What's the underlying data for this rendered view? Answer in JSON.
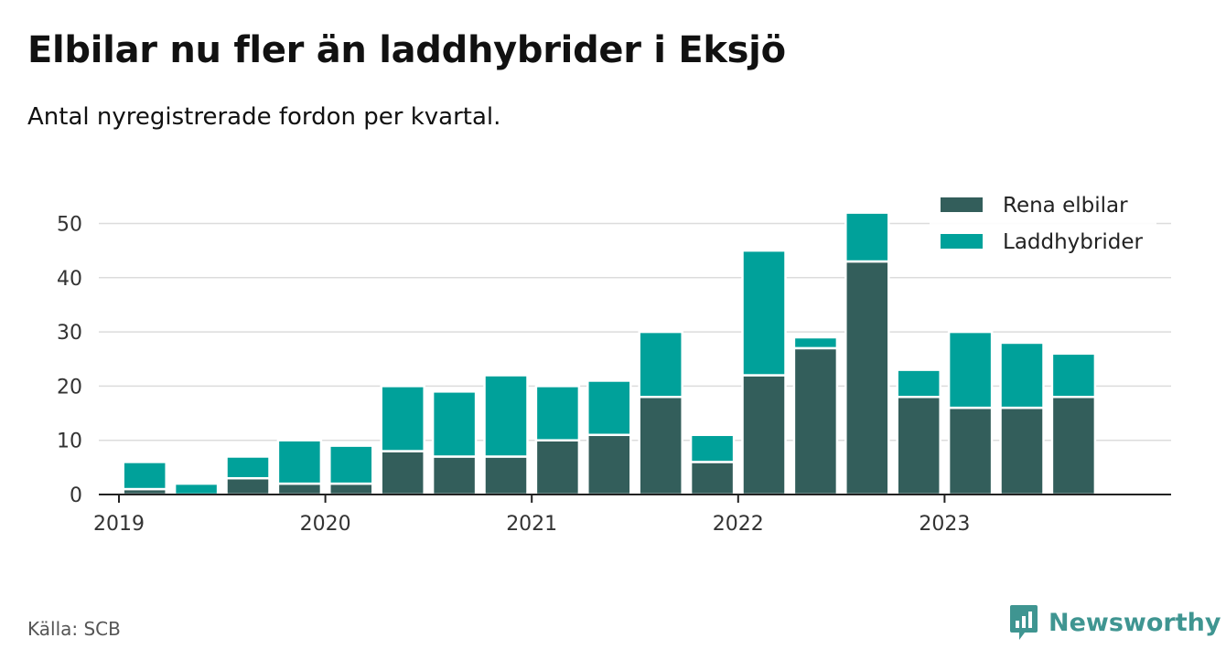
{
  "header": {
    "title": "Elbilar nu fler än laddhybrider i Eksjö",
    "subtitle": "Antal nyregistrerade fordon per kvartal."
  },
  "footer": {
    "source": "Källa: SCB",
    "brand": "Newsworthy"
  },
  "colors": {
    "elbilar": "#335e5b",
    "laddhybrider": "#00a19a",
    "brand": "#3f9591"
  },
  "chart_data": {
    "type": "bar",
    "stacked": true,
    "title": "Elbilar nu fler än laddhybrider i Eksjö",
    "subtitle": "Antal nyregistrerade fordon per kvartal.",
    "categories": [
      "2019 Q1",
      "2019 Q2",
      "2019 Q3",
      "2019 Q4",
      "2020 Q1",
      "2020 Q2",
      "2020 Q3",
      "2020 Q4",
      "2021 Q1",
      "2021 Q2",
      "2021 Q3",
      "2021 Q4",
      "2022 Q1",
      "2022 Q2",
      "2022 Q3",
      "2022 Q4",
      "2023 Q1",
      "2023 Q2",
      "2023 Q3",
      "2023 Q4"
    ],
    "series": [
      {
        "name": "Rena elbilar",
        "values": [
          1,
          0,
          3,
          2,
          2,
          8,
          7,
          7,
          10,
          11,
          18,
          6,
          22,
          27,
          43,
          18,
          16,
          16,
          18,
          0
        ]
      },
      {
        "name": "Laddhybrider",
        "values": [
          5,
          2,
          4,
          8,
          7,
          12,
          12,
          15,
          10,
          10,
          12,
          5,
          23,
          2,
          9,
          5,
          14,
          12,
          8,
          0
        ]
      }
    ],
    "x_ticks": [
      "2019",
      "2020",
      "2021",
      "2022",
      "2023"
    ],
    "y_ticks": [
      0,
      10,
      20,
      30,
      40,
      50
    ],
    "ylim": [
      0,
      54
    ],
    "xlabel": "",
    "ylabel": "",
    "grid": true,
    "legend": "top-right"
  }
}
